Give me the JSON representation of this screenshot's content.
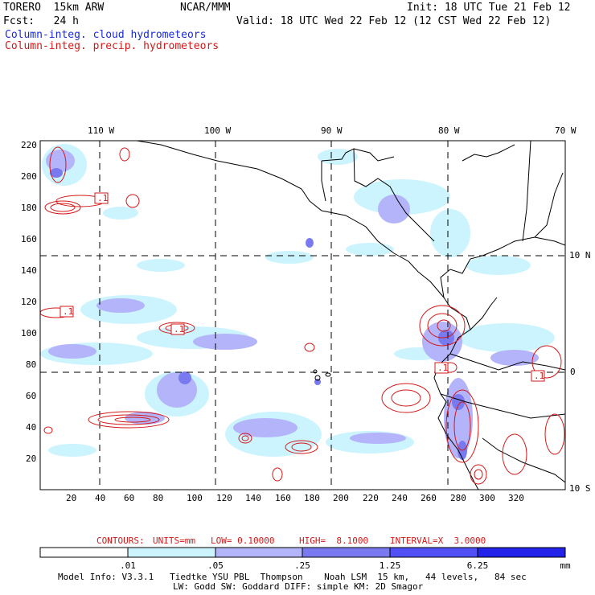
{
  "header": {
    "left_line1": "TORERO  15km ARW",
    "center_line1": "NCAR/MMM",
    "right_line1": "Init: 18 UTC Tue 21 Feb 12",
    "left_line2": "Fcst:   24 h",
    "right_line2": "Valid: 18 UTC Wed 22 Feb 12 (12 CST Wed 22 Feb 12)",
    "legend_cloud": "Column-integ. cloud hydrometeors",
    "legend_precip": "Column-integ. precip. hydrometeors"
  },
  "map": {
    "top_lon_labels": [
      "110 W",
      "100 W",
      "90 W",
      "80 W",
      "70 W"
    ],
    "right_lat_labels": [
      "10 N",
      "0",
      "10 S"
    ],
    "y_ticks": [
      "220",
      "200",
      "180",
      "160",
      "140",
      "120",
      "100",
      "80",
      "60",
      "40",
      "20"
    ],
    "x_ticks": [
      "20",
      "40",
      "60",
      "80",
      "100",
      "120",
      "140",
      "160",
      "180",
      "200",
      "220",
      "240",
      "260",
      "280",
      "300",
      "320"
    ],
    "contour_labels": [
      ".1",
      ".1",
      ".1",
      ".1",
      ".1"
    ]
  },
  "contour_info": {
    "contours": "CONTOURS:",
    "units": "UNITS=mm",
    "low": "LOW= 0.10000",
    "high": "HIGH=  8.1000",
    "interval": "INTERVAL=X  3.0000"
  },
  "colorbar": {
    "labels": [
      ".01",
      ".05",
      ".25",
      "1.25",
      "6.25"
    ],
    "unit": "mm",
    "colors": [
      "#ffffff",
      "#ccf4ff",
      "#b4b4fa",
      "#7a7af0",
      "#5050f5",
      "#2222e8"
    ]
  },
  "footer": {
    "line1": "Model Info: V3.3.1   Tiedtke YSU PBL  Thompson    Noah LSM  15 km,   44 levels,   84 sec",
    "line2": "LW: Godd SW: Goddard DIFF: simple KM: 2D Smagor"
  }
}
